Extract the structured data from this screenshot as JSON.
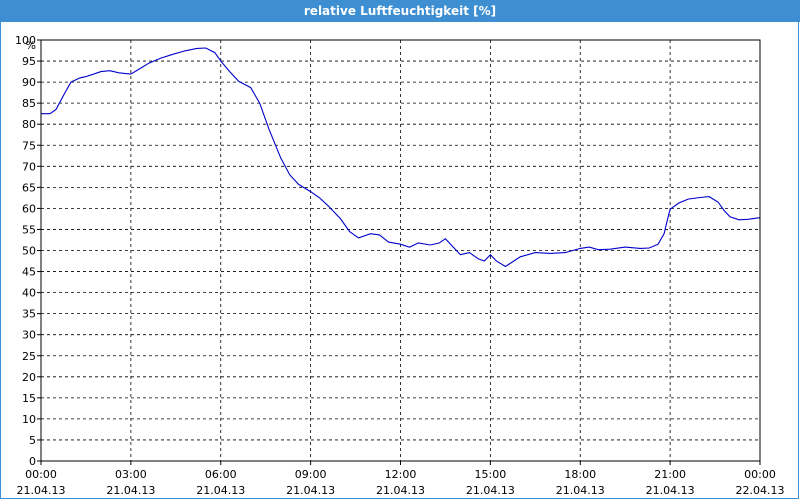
{
  "window": {
    "title": "relative Luftfeuchtigkeit [%]"
  },
  "chart_data": {
    "type": "line",
    "title": "relative Luftfeuchtigkeit [%]",
    "ylabel": "%",
    "ylim": [
      0,
      100
    ],
    "y_ticks": [
      0,
      5,
      10,
      15,
      20,
      25,
      30,
      35,
      40,
      45,
      50,
      55,
      60,
      65,
      70,
      75,
      80,
      85,
      90,
      95,
      100
    ],
    "xlim": [
      0,
      24
    ],
    "x_ticks": [
      {
        "time": "00:00",
        "date": "21.04.13"
      },
      {
        "time": "03:00",
        "date": "21.04.13"
      },
      {
        "time": "06:00",
        "date": "21.04.13"
      },
      {
        "time": "09:00",
        "date": "21.04.13"
      },
      {
        "time": "12:00",
        "date": "21.04.13"
      },
      {
        "time": "15:00",
        "date": "21.04.13"
      },
      {
        "time": "18:00",
        "date": "21.04.13"
      },
      {
        "time": "21:00",
        "date": "21.04.13"
      },
      {
        "time": "00:00",
        "date": "22.04.13"
      }
    ],
    "grid": true,
    "series": [
      {
        "color": "#0000cc",
        "x": [
          0,
          0.3,
          0.5,
          0.8,
          1.0,
          1.3,
          1.5,
          1.8,
          2.0,
          2.3,
          2.6,
          3.0,
          3.3,
          3.6,
          4.0,
          4.4,
          4.8,
          5.2,
          5.5,
          5.8,
          6.0,
          6.3,
          6.6,
          7.0,
          7.3,
          7.6,
          8.0,
          8.3,
          8.6,
          9.0,
          9.3,
          9.6,
          10.0,
          10.3,
          10.6,
          11.0,
          11.3,
          11.6,
          12.0,
          12.3,
          12.6,
          13.0,
          13.3,
          13.5,
          13.8,
          14.0,
          14.3,
          14.6,
          14.8,
          15.0,
          15.2,
          15.5,
          16.0,
          16.5,
          17.0,
          17.5,
          18.0,
          18.3,
          18.6,
          19.0,
          19.5,
          20.0,
          20.3,
          20.6,
          20.8,
          20.9,
          21.0,
          21.3,
          21.6,
          22.0,
          22.3,
          22.6,
          22.8,
          23.0,
          23.3,
          23.6,
          24.0
        ],
        "y": [
          82.5,
          82.5,
          83.5,
          87.5,
          90,
          91,
          91.3,
          92,
          92.5,
          92.7,
          92.2,
          91.9,
          93.2,
          94.5,
          95.7,
          96.6,
          97.4,
          98,
          98.1,
          97,
          95,
          92.5,
          90.2,
          88.7,
          85,
          79,
          72,
          68,
          65.7,
          64,
          62.5,
          60.5,
          57.5,
          54.5,
          53,
          54,
          53.7,
          52,
          51.5,
          50.8,
          51.8,
          51.3,
          51.8,
          52.8,
          50.5,
          49,
          49.5,
          48,
          47.5,
          49,
          47.5,
          46.2,
          48.5,
          49.5,
          49.3,
          49.5,
          50.5,
          50.8,
          50.2,
          50.3,
          50.8,
          50.5,
          50.6,
          51.5,
          54,
          57,
          59.8,
          61.3,
          62.2,
          62.6,
          62.8,
          61.5,
          59.5,
          58,
          57.3,
          57.4,
          57.8
        ]
      }
    ]
  }
}
